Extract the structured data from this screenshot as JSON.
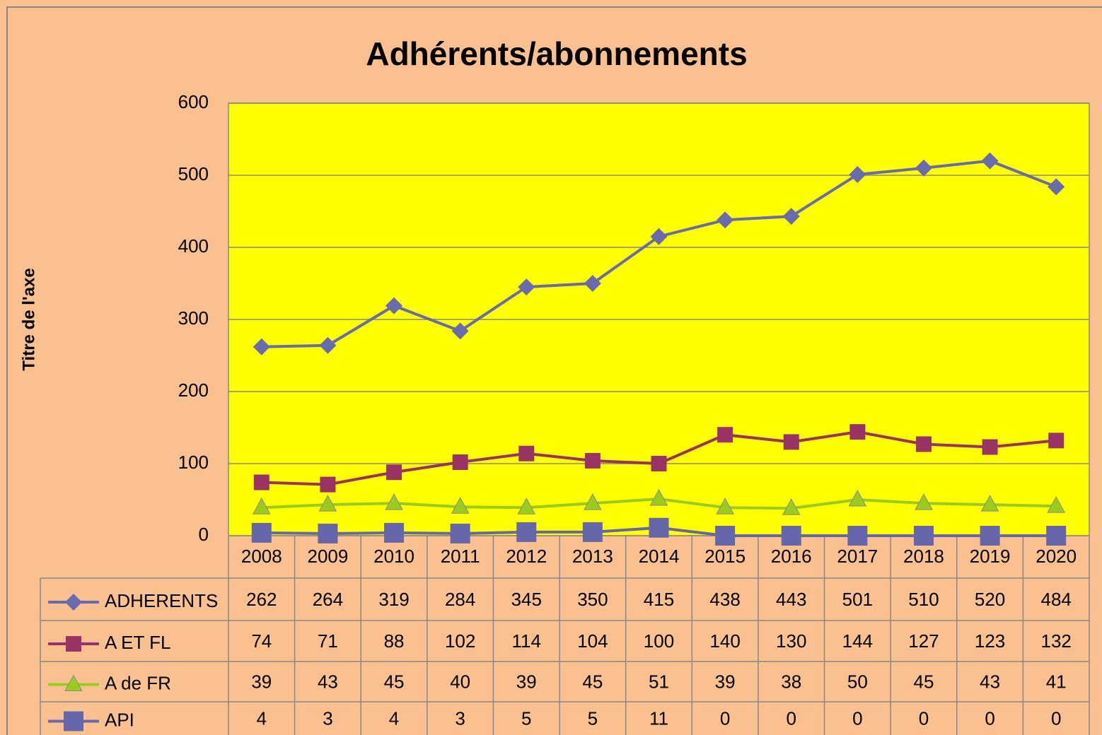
{
  "chart_data": {
    "type": "line",
    "title": "Adhérents/abonnements",
    "y_label": "Titre de l'axe",
    "categories": [
      "2008",
      "2009",
      "2010",
      "2011",
      "2012",
      "2013",
      "2014",
      "2015",
      "2016",
      "2017",
      "2018",
      "2019",
      "2020"
    ],
    "series": [
      {
        "name": "ADHERENTS",
        "color": "#6A6BAE",
        "marker": "diamond",
        "values": [
          262,
          264,
          319,
          284,
          345,
          350,
          415,
          438,
          443,
          501,
          510,
          520,
          484
        ]
      },
      {
        "name": "A ET FL",
        "color": "#993366",
        "marker": "square",
        "values": [
          74,
          71,
          88,
          102,
          114,
          104,
          100,
          140,
          130,
          144,
          127,
          123,
          132
        ]
      },
      {
        "name": "A de FR",
        "color": "#9BCB1F",
        "marker": "triangle",
        "values": [
          39,
          43,
          45,
          40,
          39,
          45,
          51,
          39,
          38,
          50,
          45,
          43,
          41
        ]
      },
      {
        "name": "API",
        "color": "#6667AB",
        "marker": "bigsquare",
        "values": [
          4,
          3,
          4,
          3,
          5,
          5,
          11,
          0,
          0,
          0,
          0,
          0,
          0
        ]
      }
    ],
    "ylim": [
      0,
      600
    ],
    "yticks": [
      0,
      100,
      200,
      300,
      400,
      500,
      600
    ],
    "grid": true,
    "plot_background": "#FFFF00"
  }
}
